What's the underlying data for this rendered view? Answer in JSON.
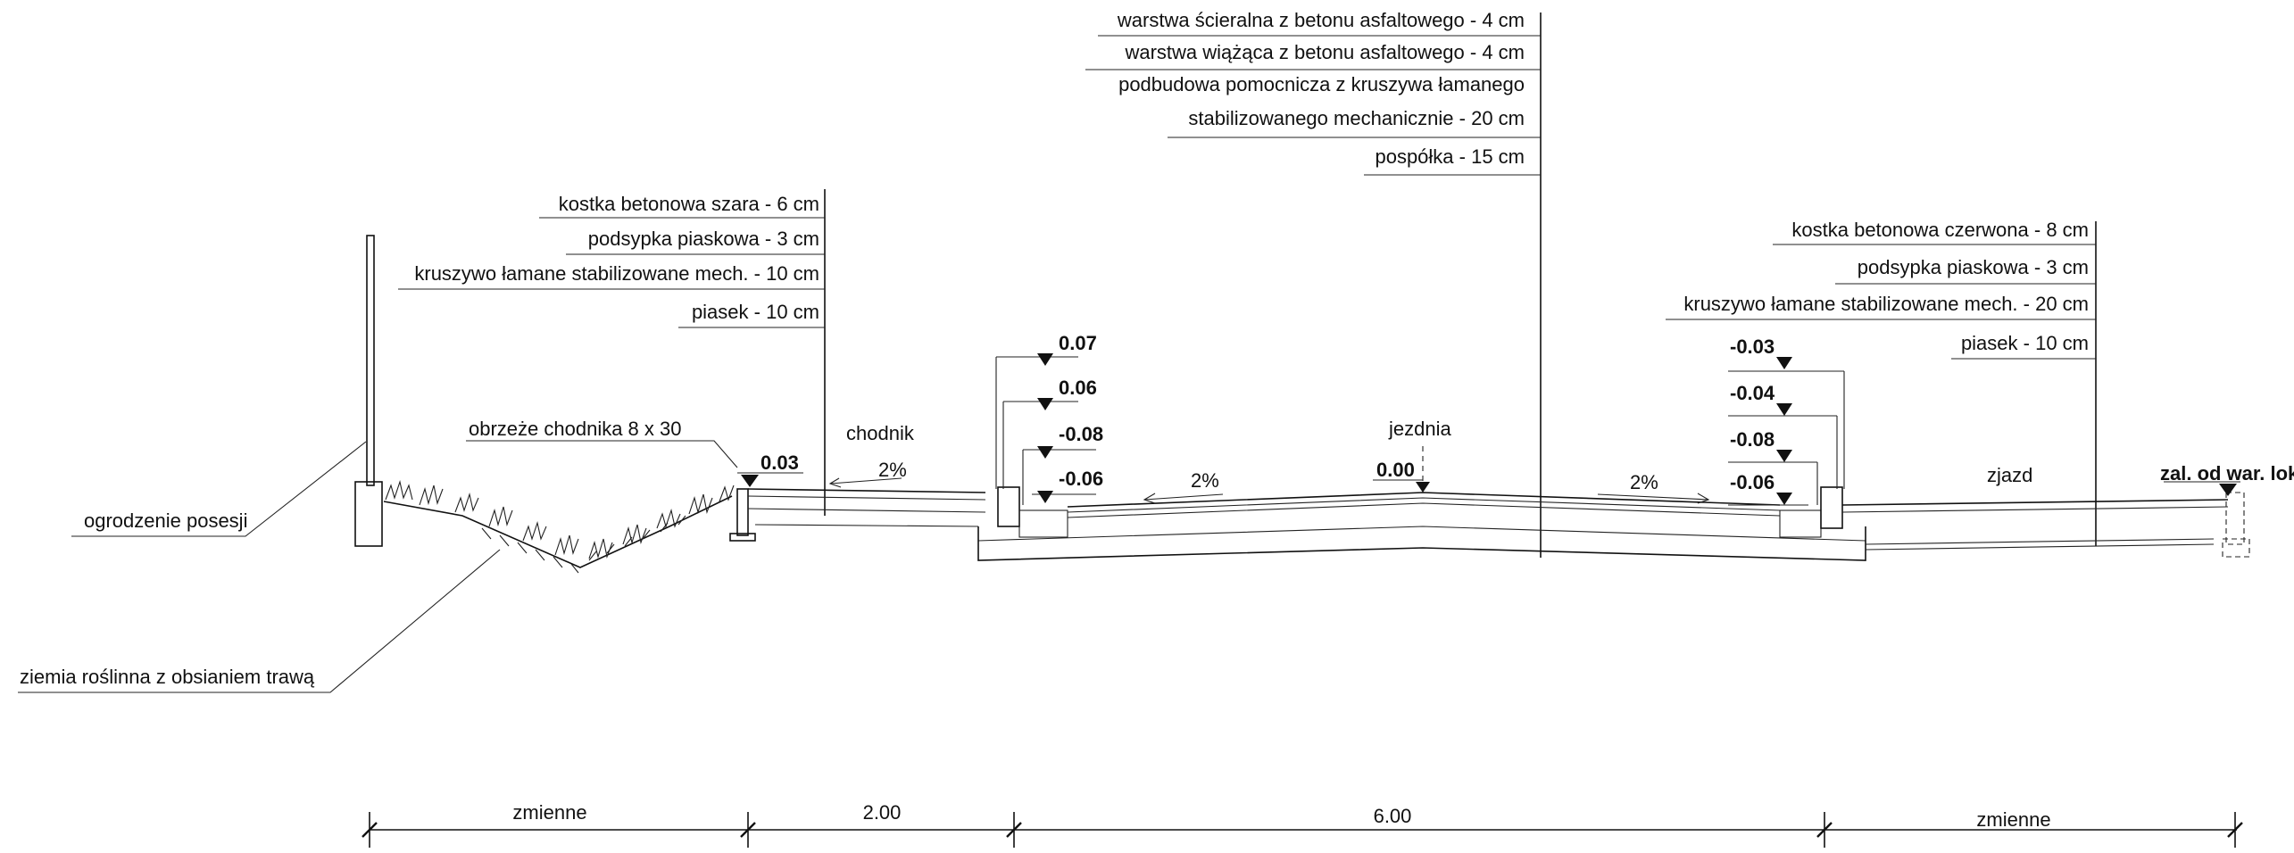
{
  "asphalt_layers": [
    "warstwa ścieralna z betonu asfaltowego - 4 cm",
    "warstwa wiążąca z betonu asfaltowego - 4 cm",
    "podbudowa pomocnicza z  kruszywa łamanego",
    "stabilizowanego mechanicznie - 20 cm",
    "pospółka - 15 cm"
  ],
  "sidewalk_layers": [
    "kostka betonowa szara - 6 cm",
    "podsypka piaskowa - 3 cm",
    "kruszywo łamane stabilizowane mech. - 10 cm",
    "piasek - 10 cm"
  ],
  "driveway_layers": [
    "kostka betonowa czerwona - 8 cm",
    "podsypka piaskowa - 3 cm",
    "kruszywo łamane stabilizowane mech. - 20 cm",
    "piasek - 10 cm"
  ],
  "labels": {
    "fence": "ogrodzenie posesji",
    "topsoil": "ziemia roślinna z obsianiem trawą",
    "edging": "obrzeże chodnika 8 x 30",
    "sidewalk": "chodnik",
    "roadway": "jezdnia",
    "driveway": "zjazd",
    "driveway_end": "zal. od war. lok."
  },
  "elevations": {
    "sidewalk_edge": "0.03",
    "left_curb": [
      "0.07",
      "0.06",
      "-0.08",
      "-0.06"
    ],
    "road_axis": "0.00",
    "right_curb": [
      "-0.03",
      "-0.04",
      "-0.08",
      "-0.06"
    ]
  },
  "slopes": {
    "sidewalk": "2%",
    "road_left": "2%",
    "road_right": "2%"
  },
  "dimensions": [
    "zmienne",
    "2.00",
    "6.00",
    "zmienne"
  ]
}
